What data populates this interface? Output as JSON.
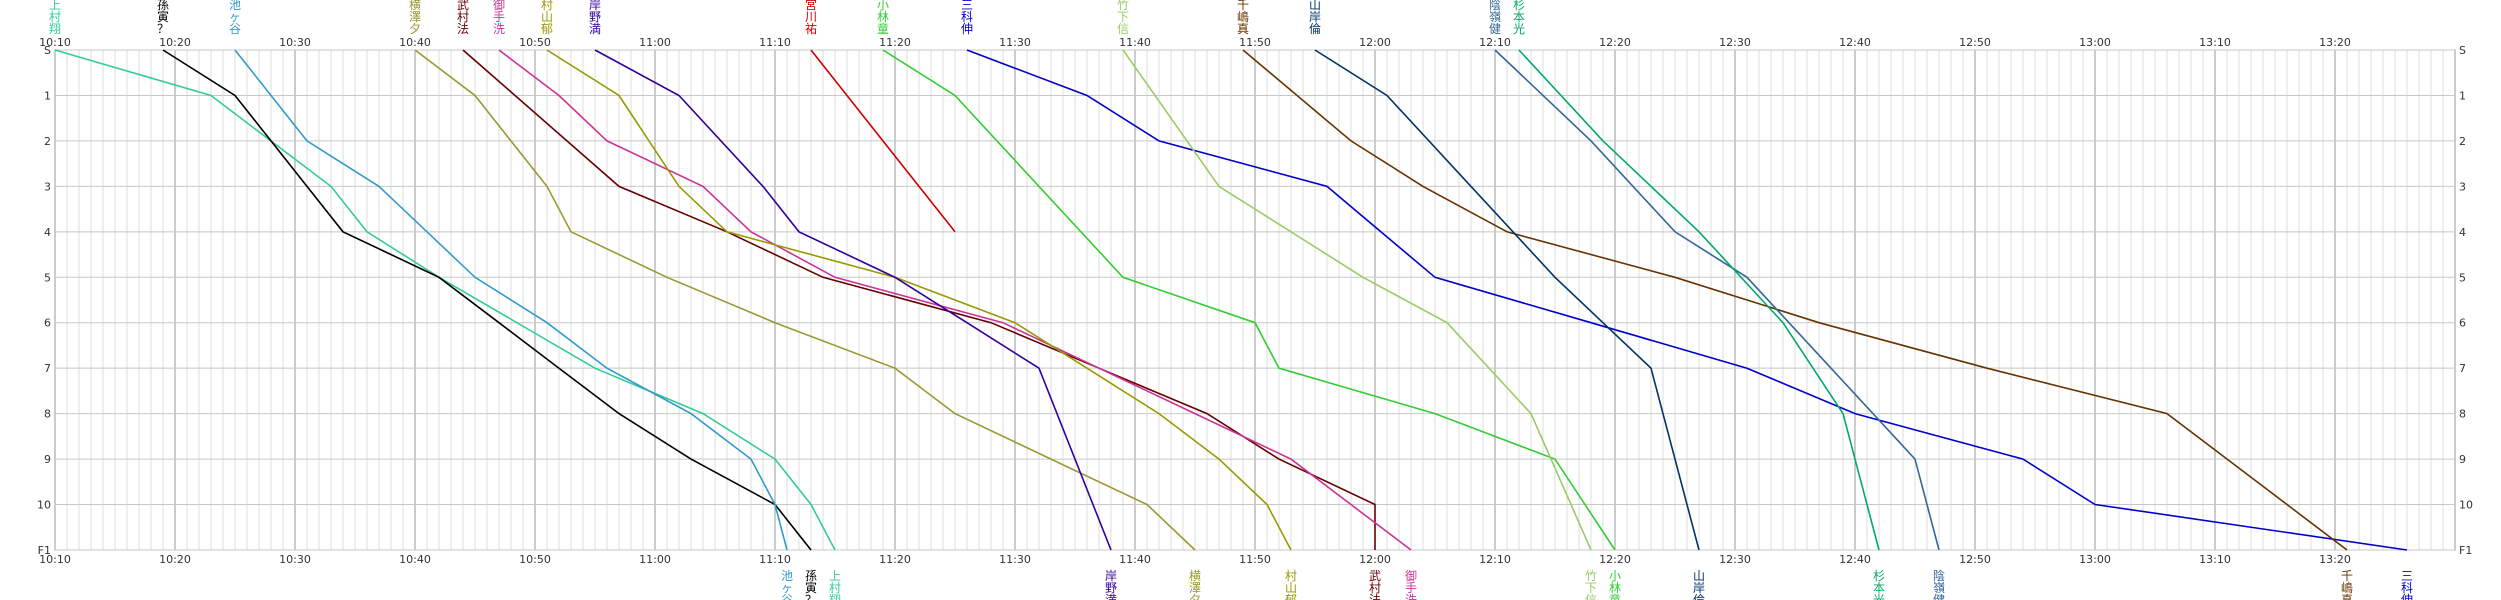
{
  "chart_data": {
    "type": "line",
    "title": "",
    "xlabel": "",
    "ylabel": "",
    "grid": true,
    "x_unit": "minutes after 10:00",
    "x_ticks": [
      "10:10",
      "10:20",
      "10:30",
      "10:40",
      "10:50",
      "11:00",
      "11:10",
      "11:20",
      "11:30",
      "11:40",
      "11:50",
      "12:00",
      "12:10",
      "12:20",
      "12:30",
      "12:40",
      "12:50",
      "13:00",
      "13:10",
      "13:20"
    ],
    "stations": [
      "S",
      "1",
      "2",
      "3",
      "4",
      "5",
      "6",
      "7",
      "8",
      "9",
      "10",
      "F1"
    ],
    "series": [
      {
        "name": "上村翔",
        "color": "#33cc99",
        "start": 10,
        "end": 73,
        "points": [
          [
            10,
            0
          ],
          [
            23,
            1
          ],
          [
            33,
            3
          ],
          [
            36,
            4
          ],
          [
            42,
            5
          ],
          [
            55,
            7
          ],
          [
            64,
            8
          ],
          [
            70,
            9
          ],
          [
            73,
            10
          ],
          [
            75,
            11
          ]
        ]
      },
      {
        "name": "孫寅？",
        "color": "#000000",
        "start": 19,
        "end": 76,
        "points": [
          [
            19,
            0
          ],
          [
            25,
            1
          ],
          [
            28,
            2
          ],
          [
            31,
            3
          ],
          [
            34,
            4
          ],
          [
            42,
            5
          ],
          [
            47,
            6
          ],
          [
            52,
            7
          ],
          [
            57,
            8
          ],
          [
            63,
            9
          ],
          [
            70,
            10
          ],
          [
            73,
            11
          ]
        ]
      },
      {
        "name": "池ヶ谷",
        "color": "#3399cc",
        "start": 25,
        "end": 71,
        "points": [
          [
            25,
            0
          ],
          [
            31,
            2
          ],
          [
            37,
            3
          ],
          [
            41,
            4
          ],
          [
            45,
            5
          ],
          [
            51,
            6
          ],
          [
            56,
            7
          ],
          [
            63,
            8
          ],
          [
            68,
            9
          ],
          [
            70,
            10
          ],
          [
            71,
            11
          ]
        ]
      },
      {
        "name": "横澤夕",
        "color": "#999933",
        "start": 40,
        "end": 105,
        "points": [
          [
            40,
            0
          ],
          [
            45,
            1
          ],
          [
            51,
            3
          ],
          [
            53,
            4
          ],
          [
            61,
            5
          ],
          [
            70,
            6
          ],
          [
            80,
            7
          ],
          [
            85,
            8
          ],
          [
            93,
            9
          ],
          [
            101,
            10
          ],
          [
            105,
            11
          ]
        ]
      },
      {
        "name": "武村法",
        "color": "#660000",
        "start": 44,
        "end": 120,
        "points": [
          [
            44,
            0
          ],
          [
            57,
            3
          ],
          [
            66,
            4
          ],
          [
            74,
            5
          ],
          [
            88,
            6
          ],
          [
            97,
            7
          ],
          [
            106,
            8
          ],
          [
            112,
            9
          ],
          [
            120,
            10
          ],
          [
            120,
            11
          ]
        ]
      },
      {
        "name": "御手洗",
        "color": "#cc3399",
        "start": 47,
        "end": 123,
        "points": [
          [
            47,
            0
          ],
          [
            52,
            1
          ],
          [
            56,
            2
          ],
          [
            64,
            3
          ],
          [
            68,
            4
          ],
          [
            75,
            5
          ],
          [
            89,
            6
          ],
          [
            97,
            7
          ],
          [
            105,
            8
          ],
          [
            113,
            9
          ],
          [
            123,
            11
          ]
        ]
      },
      {
        "name": "村山郁",
        "color": "#999900",
        "start": 51,
        "end": 102,
        "points": [
          [
            51,
            0
          ],
          [
            57,
            1
          ],
          [
            62,
            3
          ],
          [
            66,
            4
          ],
          [
            80,
            5
          ],
          [
            90,
            6
          ],
          [
            96,
            7
          ],
          [
            102,
            8
          ],
          [
            107,
            9
          ],
          [
            111,
            10
          ],
          [
            113,
            11
          ]
        ]
      },
      {
        "name": "岸野満",
        "color": "#330099",
        "start": 55,
        "end": 98,
        "points": [
          [
            55,
            0
          ],
          [
            62,
            1
          ],
          [
            69,
            3
          ],
          [
            72,
            4
          ],
          [
            80,
            5
          ],
          [
            86,
            6
          ],
          [
            92,
            7
          ],
          [
            98,
            11
          ]
        ]
      },
      {
        "name": "宮川祐",
        "color": "#cc0000",
        "start": 73,
        "end": 82,
        "points": [
          [
            73,
            0
          ],
          [
            76,
            1
          ],
          [
            82,
            3
          ],
          [
            85,
            4
          ]
        ]
      },
      {
        "name": "小林童",
        "color": "#33cc33",
        "start": 79,
        "end": 135,
        "points": [
          [
            79,
            0
          ],
          [
            85,
            1
          ],
          [
            92,
            3
          ],
          [
            99,
            5
          ],
          [
            110,
            6
          ],
          [
            112,
            7
          ],
          [
            125,
            8
          ],
          [
            135,
            9
          ],
          [
            140,
            11
          ]
        ]
      },
      {
        "name": "三科伸",
        "color": "#0000cc",
        "start": 86,
        "end": 206,
        "points": [
          [
            86,
            0
          ],
          [
            96,
            1
          ],
          [
            102,
            2
          ],
          [
            116,
            3
          ],
          [
            125,
            5
          ],
          [
            138,
            6
          ],
          [
            151,
            7
          ],
          [
            160,
            8
          ],
          [
            174,
            9
          ],
          [
            180,
            10
          ],
          [
            206,
            11
          ]
        ]
      },
      {
        "name": "竹下信",
        "color": "#99cc66",
        "start": 99,
        "end": 138,
        "points": [
          [
            99,
            0
          ],
          [
            107,
            3
          ],
          [
            119,
            5
          ],
          [
            126,
            6
          ],
          [
            133,
            8
          ],
          [
            138,
            11
          ]
        ]
      },
      {
        "name": "千嶋真",
        "color": "#663300",
        "start": 109,
        "end": 201,
        "points": [
          [
            109,
            0
          ],
          [
            118,
            2
          ],
          [
            124,
            3
          ],
          [
            131,
            4
          ],
          [
            145,
            5
          ],
          [
            157,
            6
          ],
          [
            171,
            7
          ],
          [
            186,
            8
          ],
          [
            201,
            11
          ]
        ]
      },
      {
        "name": "山岸倫",
        "color": "#003366",
        "start": 115,
        "end": 147,
        "points": [
          [
            115,
            0
          ],
          [
            121,
            1
          ],
          [
            128,
            3
          ],
          [
            135,
            5
          ],
          [
            143,
            7
          ],
          [
            147,
            11
          ]
        ]
      },
      {
        "name": "陰嶺健",
        "color": "#336699",
        "start": 130,
        "end": 167,
        "points": [
          [
            130,
            0
          ],
          [
            138,
            2
          ],
          [
            145,
            4
          ],
          [
            151,
            5
          ],
          [
            158,
            7
          ],
          [
            165,
            9
          ],
          [
            167,
            11
          ]
        ]
      },
      {
        "name": "杉本光",
        "color": "#00aa66",
        "start": 132,
        "end": 162,
        "points": [
          [
            132,
            0
          ],
          [
            139,
            2
          ],
          [
            147,
            4
          ],
          [
            154,
            6
          ],
          [
            159,
            8
          ],
          [
            162,
            11
          ]
        ]
      }
    ]
  }
}
